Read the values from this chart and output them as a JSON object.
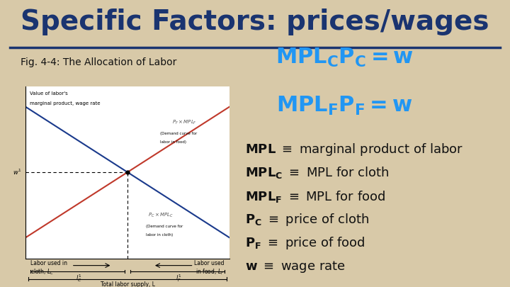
{
  "title": "Specific Factors: prices/wages",
  "title_color": "#1a3470",
  "title_fontsize": 28,
  "background_color": "#d8c9a8",
  "fig_caption": "Fig. 4-4: The Allocation of Labor",
  "eq_color": "#2196F3",
  "eq_fontsize": 22,
  "bullet_fontsize": 13,
  "bullet_color": "#111111",
  "bullet_line0": "MPL ≡ marginal product of labor",
  "bullet_line1": "MPL₂ ≡ MPL for cloth",
  "bullet_line2": "MPL₂ ≡ MPL for food",
  "bullet_line3": "P₂ ≡ price of cloth",
  "bullet_line4": "P₂ ≡ price of food",
  "bullet_line5": "w ≡ wage rate"
}
